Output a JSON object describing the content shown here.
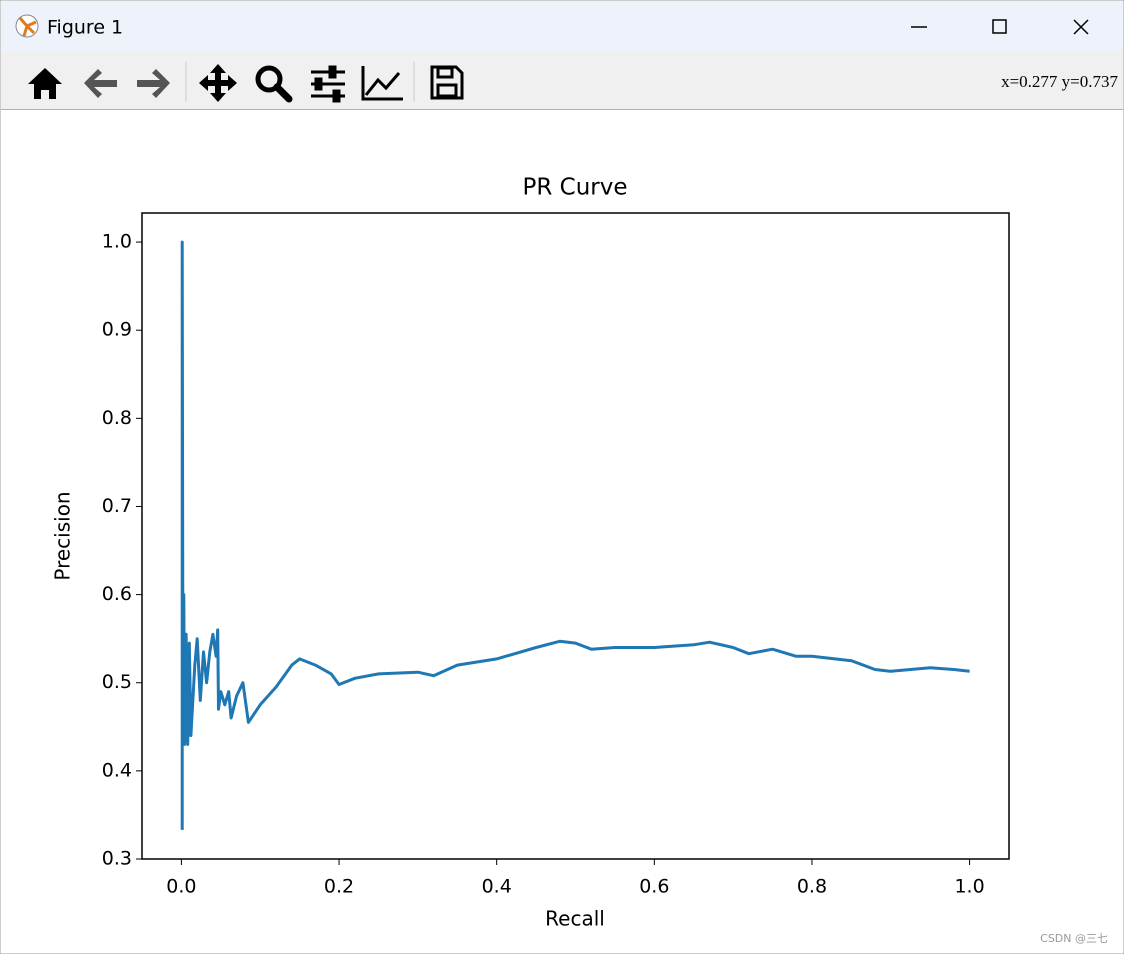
{
  "window": {
    "title": "Figure 1",
    "coordinates": "x=0.277  y=0.737",
    "watermark": "CSDN @三七"
  },
  "chart_data": {
    "type": "line",
    "title": "PR Curve",
    "x_label": "Recall",
    "y_label": "Precision",
    "x": [
      0.001,
      0.001,
      0.002,
      0.003,
      0.004,
      0.006,
      0.008,
      0.01,
      0.012,
      0.017,
      0.02,
      0.024,
      0.028,
      0.032,
      0.036,
      0.04,
      0.044,
      0.046,
      0.047,
      0.05,
      0.055,
      0.06,
      0.063,
      0.07,
      0.078,
      0.085,
      0.1,
      0.12,
      0.14,
      0.15,
      0.17,
      0.19,
      0.2,
      0.22,
      0.25,
      0.3,
      0.32,
      0.35,
      0.4,
      0.45,
      0.48,
      0.5,
      0.52,
      0.55,
      0.6,
      0.65,
      0.67,
      0.7,
      0.72,
      0.75,
      0.78,
      0.8,
      0.85,
      0.88,
      0.9,
      0.95,
      0.98,
      1.0
    ],
    "series": [
      {
        "name": "PR",
        "color": "#1f77b4",
        "values": [
          0.333,
          1.0,
          0.43,
          0.6,
          0.43,
          0.555,
          0.43,
          0.545,
          0.44,
          0.52,
          0.55,
          0.48,
          0.535,
          0.5,
          0.535,
          0.555,
          0.53,
          0.56,
          0.47,
          0.49,
          0.475,
          0.49,
          0.46,
          0.485,
          0.5,
          0.455,
          0.475,
          0.495,
          0.52,
          0.527,
          0.52,
          0.51,
          0.498,
          0.505,
          0.51,
          0.512,
          0.508,
          0.52,
          0.527,
          0.54,
          0.547,
          0.545,
          0.538,
          0.54,
          0.54,
          0.543,
          0.546,
          0.54,
          0.533,
          0.538,
          0.53,
          0.53,
          0.525,
          0.515,
          0.513,
          0.517,
          0.515,
          0.513
        ]
      }
    ],
    "xlim": [
      -0.05,
      1.05
    ],
    "ylim": [
      0.3,
      1.033
    ],
    "xticks": [
      {
        "value": 0,
        "label": "0.0"
      },
      0.2,
      0.4,
      0.6,
      0.8,
      {
        "value": 1,
        "label": "1.0"
      }
    ],
    "yticks": [
      0.3,
      0.4,
      0.5,
      0.6,
      0.7,
      0.8,
      0.9,
      {
        "value": 1,
        "label": "1.0"
      }
    ],
    "grid": false
  }
}
